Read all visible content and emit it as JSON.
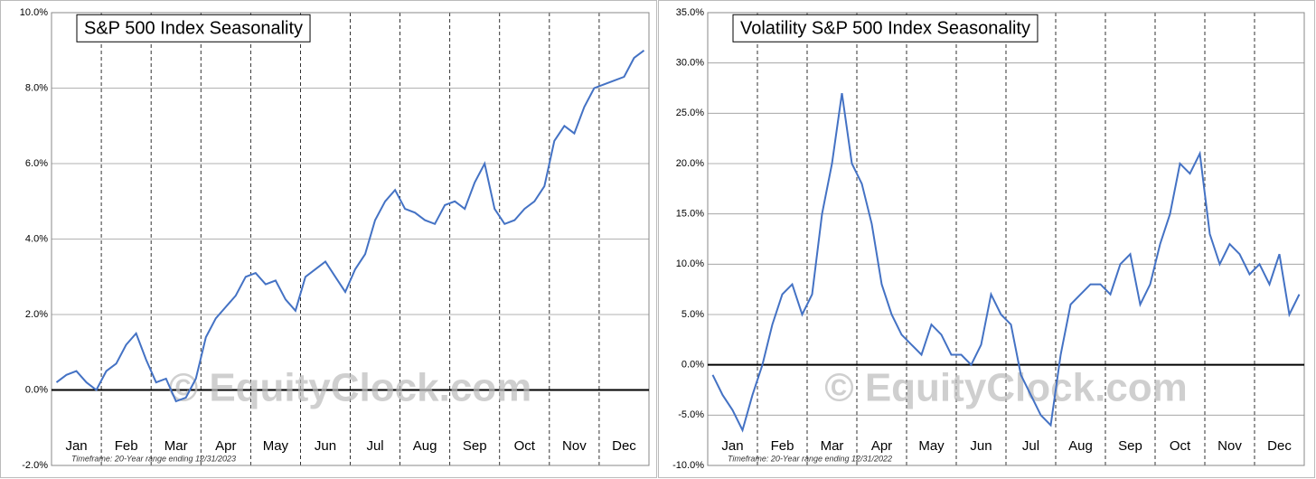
{
  "chart_data": [
    {
      "type": "line",
      "title": "S&P 500 Index Seasonality",
      "categories": [
        null,
        null,
        "Jan",
        null,
        null,
        null,
        null,
        "Feb",
        null,
        null,
        null,
        null,
        "Mar",
        null,
        null,
        null,
        null,
        "Apr",
        null,
        null,
        null,
        null,
        "May",
        null,
        null,
        null,
        null,
        "Jun",
        null,
        null,
        null,
        null,
        "Jul",
        null,
        null,
        null,
        null,
        "Aug",
        null,
        null,
        null,
        null,
        "Sep",
        null,
        null,
        null,
        null,
        "Oct",
        null,
        null,
        null,
        null,
        "Nov",
        null,
        null,
        null,
        null,
        "Dec",
        null,
        null
      ],
      "color": "#4472c4",
      "values": [
        0.2,
        0.4,
        0.5,
        0.2,
        0.0,
        0.5,
        0.7,
        1.2,
        1.5,
        0.8,
        0.2,
        0.3,
        -0.3,
        -0.2,
        0.3,
        1.4,
        1.9,
        2.2,
        2.5,
        3.0,
        3.1,
        2.8,
        2.9,
        2.4,
        2.1,
        3.0,
        3.2,
        3.4,
        3.0,
        2.6,
        3.2,
        3.6,
        4.5,
        5.0,
        5.3,
        4.8,
        4.7,
        4.5,
        4.4,
        4.9,
        5.0,
        4.8,
        5.5,
        6.0,
        4.8,
        4.4,
        4.5,
        4.8,
        5.0,
        5.4,
        6.6,
        7.0,
        6.8,
        7.5,
        8.0,
        8.1,
        8.2,
        8.3,
        8.8,
        9.0
      ],
      "ylim": [
        -2,
        10
      ],
      "yticks": [
        {
          "value": -2,
          "label": "-2.0%"
        },
        {
          "value": 0,
          "label": "0.0%"
        },
        {
          "value": 2,
          "label": "2.0%"
        },
        {
          "value": 4,
          "label": "4.0%"
        },
        {
          "value": 6,
          "label": "6.0%"
        },
        {
          "value": 8,
          "label": "8.0%"
        },
        {
          "value": 10,
          "label": "10.0%"
        }
      ],
      "grid": true,
      "footnote": "Timeframe: 20-Year range ending 12/31/2023",
      "watermark": "© EquityClock.com"
    },
    {
      "type": "line",
      "title": "Volatility S&P 500 Index Seasonality",
      "categories": [
        null,
        null,
        "Jan",
        null,
        null,
        null,
        null,
        "Feb",
        null,
        null,
        null,
        null,
        "Mar",
        null,
        null,
        null,
        null,
        "Apr",
        null,
        null,
        null,
        null,
        "May",
        null,
        null,
        null,
        null,
        "Jun",
        null,
        null,
        null,
        null,
        "Jul",
        null,
        null,
        null,
        null,
        "Aug",
        null,
        null,
        null,
        null,
        "Sep",
        null,
        null,
        null,
        null,
        "Oct",
        null,
        null,
        null,
        null,
        "Nov",
        null,
        null,
        null,
        null,
        "Dec",
        null,
        null
      ],
      "color": "#4472c4",
      "values": [
        -1,
        -3,
        -4.5,
        -6.5,
        -3,
        0,
        4,
        7,
        8,
        5,
        7,
        15,
        20,
        27,
        20,
        18,
        14,
        8,
        5,
        3,
        2,
        1,
        4,
        3,
        1,
        1,
        0,
        2,
        7,
        5,
        4,
        -1,
        -3,
        -5,
        -6,
        1,
        6,
        7,
        8,
        8,
        7,
        10,
        11,
        6,
        8,
        12,
        15,
        20,
        19,
        21,
        13,
        10,
        12,
        11,
        9,
        10,
        8,
        11,
        5,
        7
      ],
      "ylim": [
        -10,
        35
      ],
      "yticks": [
        {
          "value": -10,
          "label": "-10.0%"
        },
        {
          "value": -5,
          "label": "-5.0%"
        },
        {
          "value": 0,
          "label": "0.0%"
        },
        {
          "value": 5,
          "label": "5.0%"
        },
        {
          "value": 10,
          "label": "10.0%"
        },
        {
          "value": 15,
          "label": "15.0%"
        },
        {
          "value": 20,
          "label": "20.0%"
        },
        {
          "value": 25,
          "label": "25.0%"
        },
        {
          "value": 30,
          "label": "30.0%"
        },
        {
          "value": 35,
          "label": "35.0%"
        }
      ],
      "grid": true,
      "footnote": "Timeframe: 20-Year range ending 12/31/2022",
      "watermark": "© EquityClock.com"
    }
  ]
}
